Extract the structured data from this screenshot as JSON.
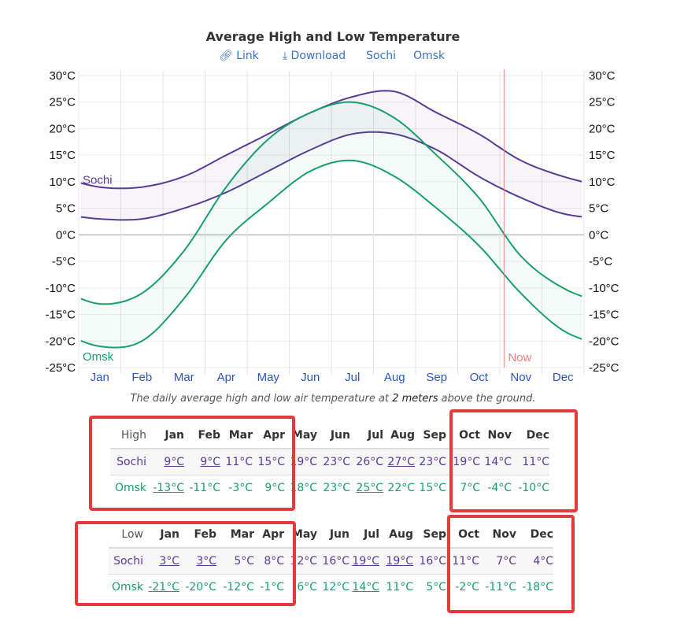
{
  "title": "Average High and Low Temperature",
  "links": {
    "link": "Link",
    "download": "Download",
    "sochi": "Sochi",
    "omsk": "Omsk"
  },
  "caption": {
    "pre": "The daily average high and low air temperature at ",
    "bold": "2 meters",
    "post": " above the ground."
  },
  "colors": {
    "sochi": "#5a3a98",
    "omsk": "#17a06a",
    "now": "#f08080"
  },
  "chart_data": {
    "type": "area",
    "title": "Average High and Low Temperature",
    "x_categories": [
      "Jan",
      "Feb",
      "Mar",
      "Apr",
      "May",
      "Jun",
      "Jul",
      "Aug",
      "Sep",
      "Oct",
      "Nov",
      "Dec"
    ],
    "y_ticks": [
      "30°C",
      "25°C",
      "20°C",
      "15°C",
      "10°C",
      "5°C",
      "0°C",
      "-5°C",
      "-10°C",
      "-15°C",
      "-20°C",
      "-25°C"
    ],
    "ylim": [
      -25,
      30
    ],
    "now_label": "Now",
    "now_month_fraction": 10.1,
    "series": [
      {
        "name": "Sochi",
        "high": [
          9,
          9,
          11,
          15,
          19,
          23,
          26,
          27,
          23,
          19,
          14,
          11
        ],
        "low": [
          3,
          3,
          5,
          8,
          12,
          16,
          19,
          19,
          16,
          11,
          7,
          4
        ]
      },
      {
        "name": "Omsk",
        "high": [
          -13,
          -11,
          -3,
          9,
          18,
          23,
          25,
          22,
          15,
          7,
          -4,
          -10
        ],
        "low": [
          -21,
          -20,
          -12,
          -1,
          6,
          12,
          14,
          11,
          5,
          -2,
          -11,
          -18
        ]
      }
    ]
  },
  "tables": {
    "months": [
      "Jan",
      "Feb",
      "Mar",
      "Apr",
      "May",
      "Jun",
      "Jul",
      "Aug",
      "Sep",
      "Oct",
      "Nov",
      "Dec"
    ],
    "high": {
      "label": "High",
      "sochi": [
        "9°C",
        "9°C",
        "11°C",
        "15°C",
        "19°C",
        "23°C",
        "26°C",
        "27°C",
        "23°C",
        "19°C",
        "14°C",
        "11°C"
      ],
      "omsk": [
        "-13°C",
        "-11°C",
        "-3°C",
        "9°C",
        "18°C",
        "23°C",
        "25°C",
        "22°C",
        "15°C",
        "7°C",
        "-4°C",
        "-10°C"
      ]
    },
    "low": {
      "label": "Low",
      "sochi": [
        "3°C",
        "3°C",
        "5°C",
        "8°C",
        "12°C",
        "16°C",
        "19°C",
        "19°C",
        "16°C",
        "11°C",
        "7°C",
        "4°C"
      ],
      "omsk": [
        "-21°C",
        "-20°C",
        "-12°C",
        "-1°C",
        "6°C",
        "12°C",
        "14°C",
        "11°C",
        "5°C",
        "-2°C",
        "-11°C",
        "-18°C"
      ]
    },
    "row_sochi": "Sochi",
    "row_omsk": "Omsk"
  }
}
